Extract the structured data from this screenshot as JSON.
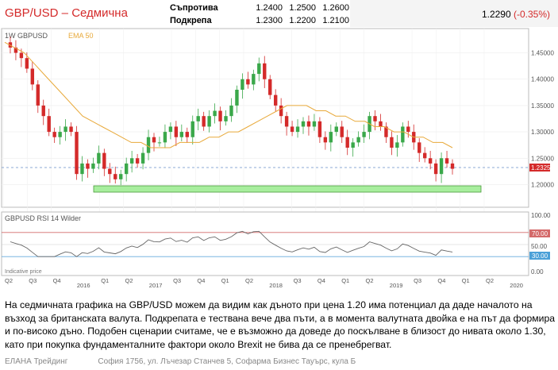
{
  "header": {
    "title": "GBP/USD – Седмична",
    "resistance_label": "Съпротива",
    "resistance_values": [
      "1.2400",
      "1.2500",
      "1.2600"
    ],
    "support_label": "Подкрепа",
    "support_values": [
      "1.2300",
      "1.2200",
      "1.2100"
    ],
    "price": "1.2290",
    "change": "(-0.35%)"
  },
  "chart_data": {
    "type": "candlestick",
    "symbol": "GBPUSD",
    "interval": "1W",
    "indicator_label": "EMA 50",
    "current_price_tag": "1.23255",
    "price_axis_ticks": [
      "1.45000",
      "1.40000",
      "1.35000",
      "1.30000",
      "1.25000",
      "1.20000"
    ],
    "ylim": [
      1.16,
      1.49
    ],
    "support_zone": [
      1.185,
      1.2
    ],
    "time_axis_labels": [
      "Q2",
      "Q3",
      "Q4",
      "2016",
      "Q1",
      "Q2",
      "2017",
      "Q3",
      "Q4",
      "Q1",
      "Q2",
      "2018",
      "Q3",
      "Q4",
      "Q1",
      "Q2",
      "2019",
      "Q3",
      "Q4",
      "Q1",
      "Q2",
      "2020"
    ],
    "price_approx_weekly_path": [
      1.47,
      1.46,
      1.45,
      1.44,
      1.42,
      1.39,
      1.35,
      1.33,
      1.3,
      1.29,
      1.3,
      1.31,
      1.3,
      1.22,
      1.24,
      1.23,
      1.24,
      1.26,
      1.23,
      1.22,
      1.21,
      1.22,
      1.24,
      1.25,
      1.24,
      1.26,
      1.29,
      1.28,
      1.28,
      1.3,
      1.31,
      1.29,
      1.3,
      1.29,
      1.32,
      1.33,
      1.31,
      1.33,
      1.34,
      1.32,
      1.33,
      1.35,
      1.38,
      1.4,
      1.39,
      1.41,
      1.43,
      1.4,
      1.37,
      1.35,
      1.33,
      1.31,
      1.3,
      1.31,
      1.32,
      1.31,
      1.32,
      1.29,
      1.28,
      1.3,
      1.31,
      1.29,
      1.27,
      1.28,
      1.29,
      1.3,
      1.33,
      1.32,
      1.31,
      1.29,
      1.27,
      1.28,
      1.31,
      1.3,
      1.28,
      1.26,
      1.25,
      1.24,
      1.22,
      1.25,
      1.24,
      1.23
    ],
    "ema50_approx_path": [
      1.47,
      1.46,
      1.45,
      1.43,
      1.41,
      1.39,
      1.37,
      1.35,
      1.33,
      1.32,
      1.31,
      1.3,
      1.29,
      1.28,
      1.28,
      1.27,
      1.27,
      1.27,
      1.28,
      1.28,
      1.28,
      1.29,
      1.29,
      1.3,
      1.3,
      1.31,
      1.32,
      1.33,
      1.34,
      1.35,
      1.35,
      1.35,
      1.34,
      1.34,
      1.33,
      1.33,
      1.32,
      1.32,
      1.31,
      1.31,
      1.3,
      1.3,
      1.29,
      1.29,
      1.28,
      1.28,
      1.27
    ],
    "rsi": {
      "label": "GBPUSD  RSI 14 Wilder",
      "axis_ticks": [
        "100.00",
        "50.00",
        "0.00"
      ],
      "upper_level": "70.00",
      "lower_level": "30.00",
      "axis_note": "Indicative price"
    }
  },
  "body_text": "На седмичната графика на GBP/USD можем да видим как дъното при цена 1.20 има потенциал да даде началото на възход за британската валута. Подкрепата е тествана вече два пъти, а в момента валутната двойка е на път да формира и по-високо дъно. Подобен сценарии считаме, че е възможно да доведе до поскълване в близост до нивата около 1.30, като при покупка фундаменталните фактори около Brexit не бива да се пренебрегват.",
  "footer": {
    "company": "ЕЛАНА Трейдинг",
    "address": "София 1756, ул. Лъчезар Станчев 5, Софарма Бизнес Тауърс, кула Б"
  }
}
